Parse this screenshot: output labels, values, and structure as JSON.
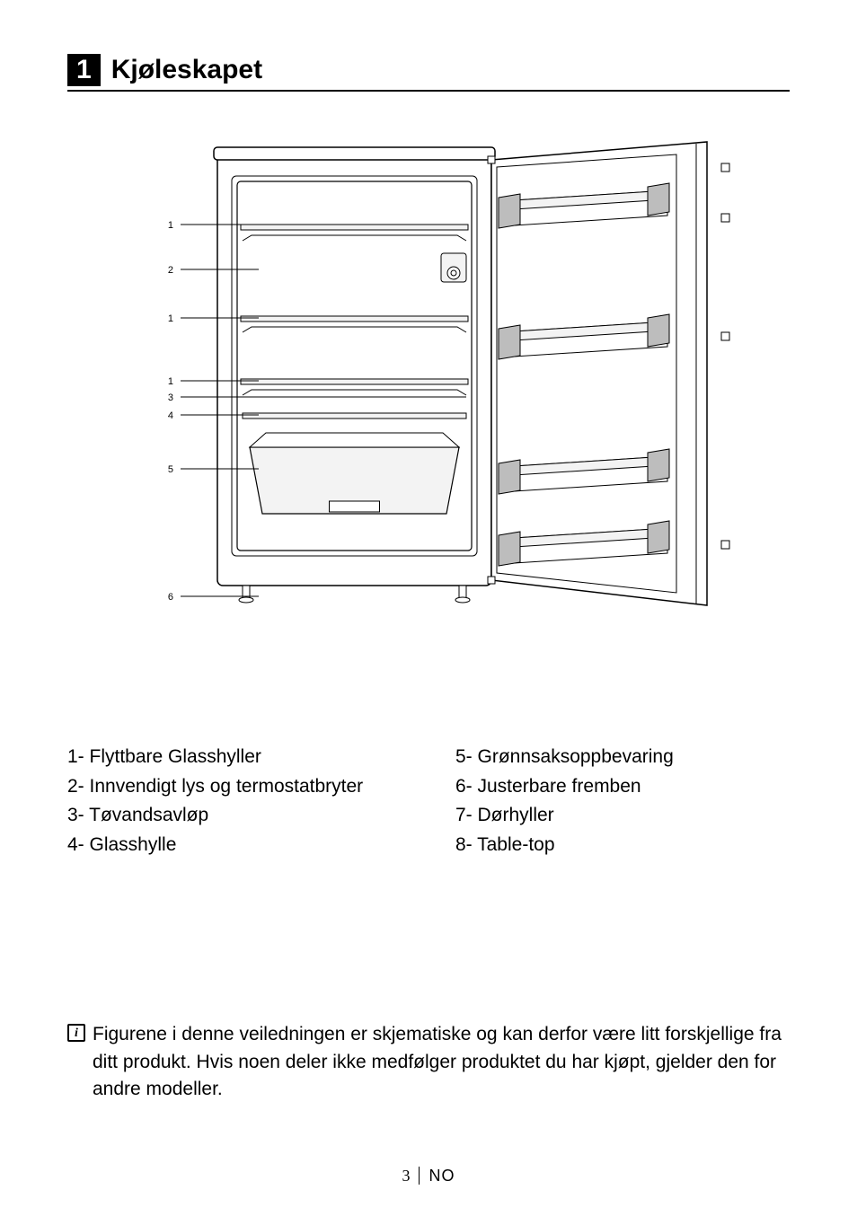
{
  "heading": {
    "number": "1",
    "title": "Kjøleskapet"
  },
  "diagram": {
    "callouts_left": [
      "1",
      "2",
      "1",
      "1",
      "3",
      "4",
      "5",
      "6"
    ],
    "stroke": "#000000",
    "fill_light": "#f3f3f3",
    "fill_mid": "#bdbdbd",
    "fill_dark": "#8a8a8a",
    "label_font_size": 11
  },
  "legend": {
    "left": [
      {
        "n": "1",
        "t": "Flyttbare Glasshyller"
      },
      {
        "n": "2",
        "t": "Innvendigt lys og termostatbryter"
      },
      {
        "n": "3",
        "t": "Tøvandsavløp"
      },
      {
        "n": "4",
        "t": "Glasshylle"
      }
    ],
    "right": [
      {
        "n": "5",
        "t": "Grønnsaksoppbevaring"
      },
      {
        "n": "6",
        "t": "Justerbare fremben"
      },
      {
        "n": "7",
        "t": "Dørhyller"
      },
      {
        "n": "8",
        "t": "Table-top"
      }
    ]
  },
  "note": "Figurene i denne veiledningen er skjematiske og kan derfor være litt forskjellige fra ditt produkt. Hvis noen deler ikke medfølger produktet du har kjøpt, gjelder den for andre modeller.",
  "footer": {
    "page": "3",
    "lang": "NO"
  }
}
